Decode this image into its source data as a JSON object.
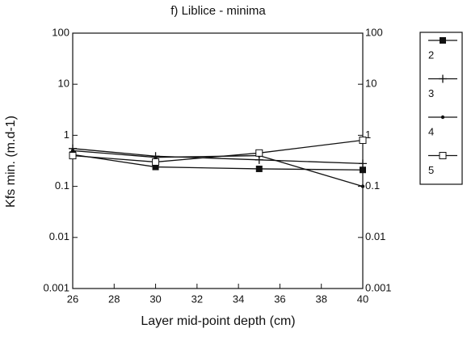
{
  "chart_data": {
    "type": "line",
    "title": "f) Liblice - minima",
    "x_label": "Layer mid-point depth (cm)",
    "y_label": "Kfs min. (m.d-1)",
    "x": [
      26,
      30,
      35,
      40
    ],
    "series": [
      {
        "name": "2",
        "color": "#111111",
        "marker": "filled-square",
        "values": [
          0.42,
          0.24,
          0.22,
          0.21
        ]
      },
      {
        "name": "3",
        "color": "#111111",
        "marker": "plus",
        "values": [
          0.55,
          0.39,
          0.33,
          0.28
        ]
      },
      {
        "name": "4",
        "color": "#111111",
        "marker": "dot",
        "values": [
          0.5,
          0.37,
          0.4,
          0.1
        ]
      },
      {
        "name": "5",
        "color": "#111111",
        "marker": "open-square",
        "values": [
          0.4,
          0.3,
          0.45,
          0.8
        ]
      }
    ],
    "xlim": [
      26,
      40
    ],
    "xticks": [
      26,
      28,
      30,
      32,
      34,
      36,
      38,
      40
    ],
    "ylim": [
      0.001,
      100
    ],
    "yticks": [
      0.001,
      0.01,
      0.1,
      1,
      10,
      100
    ],
    "yscale": "log",
    "right_axis_mirror": true,
    "legend": "outside-right"
  }
}
